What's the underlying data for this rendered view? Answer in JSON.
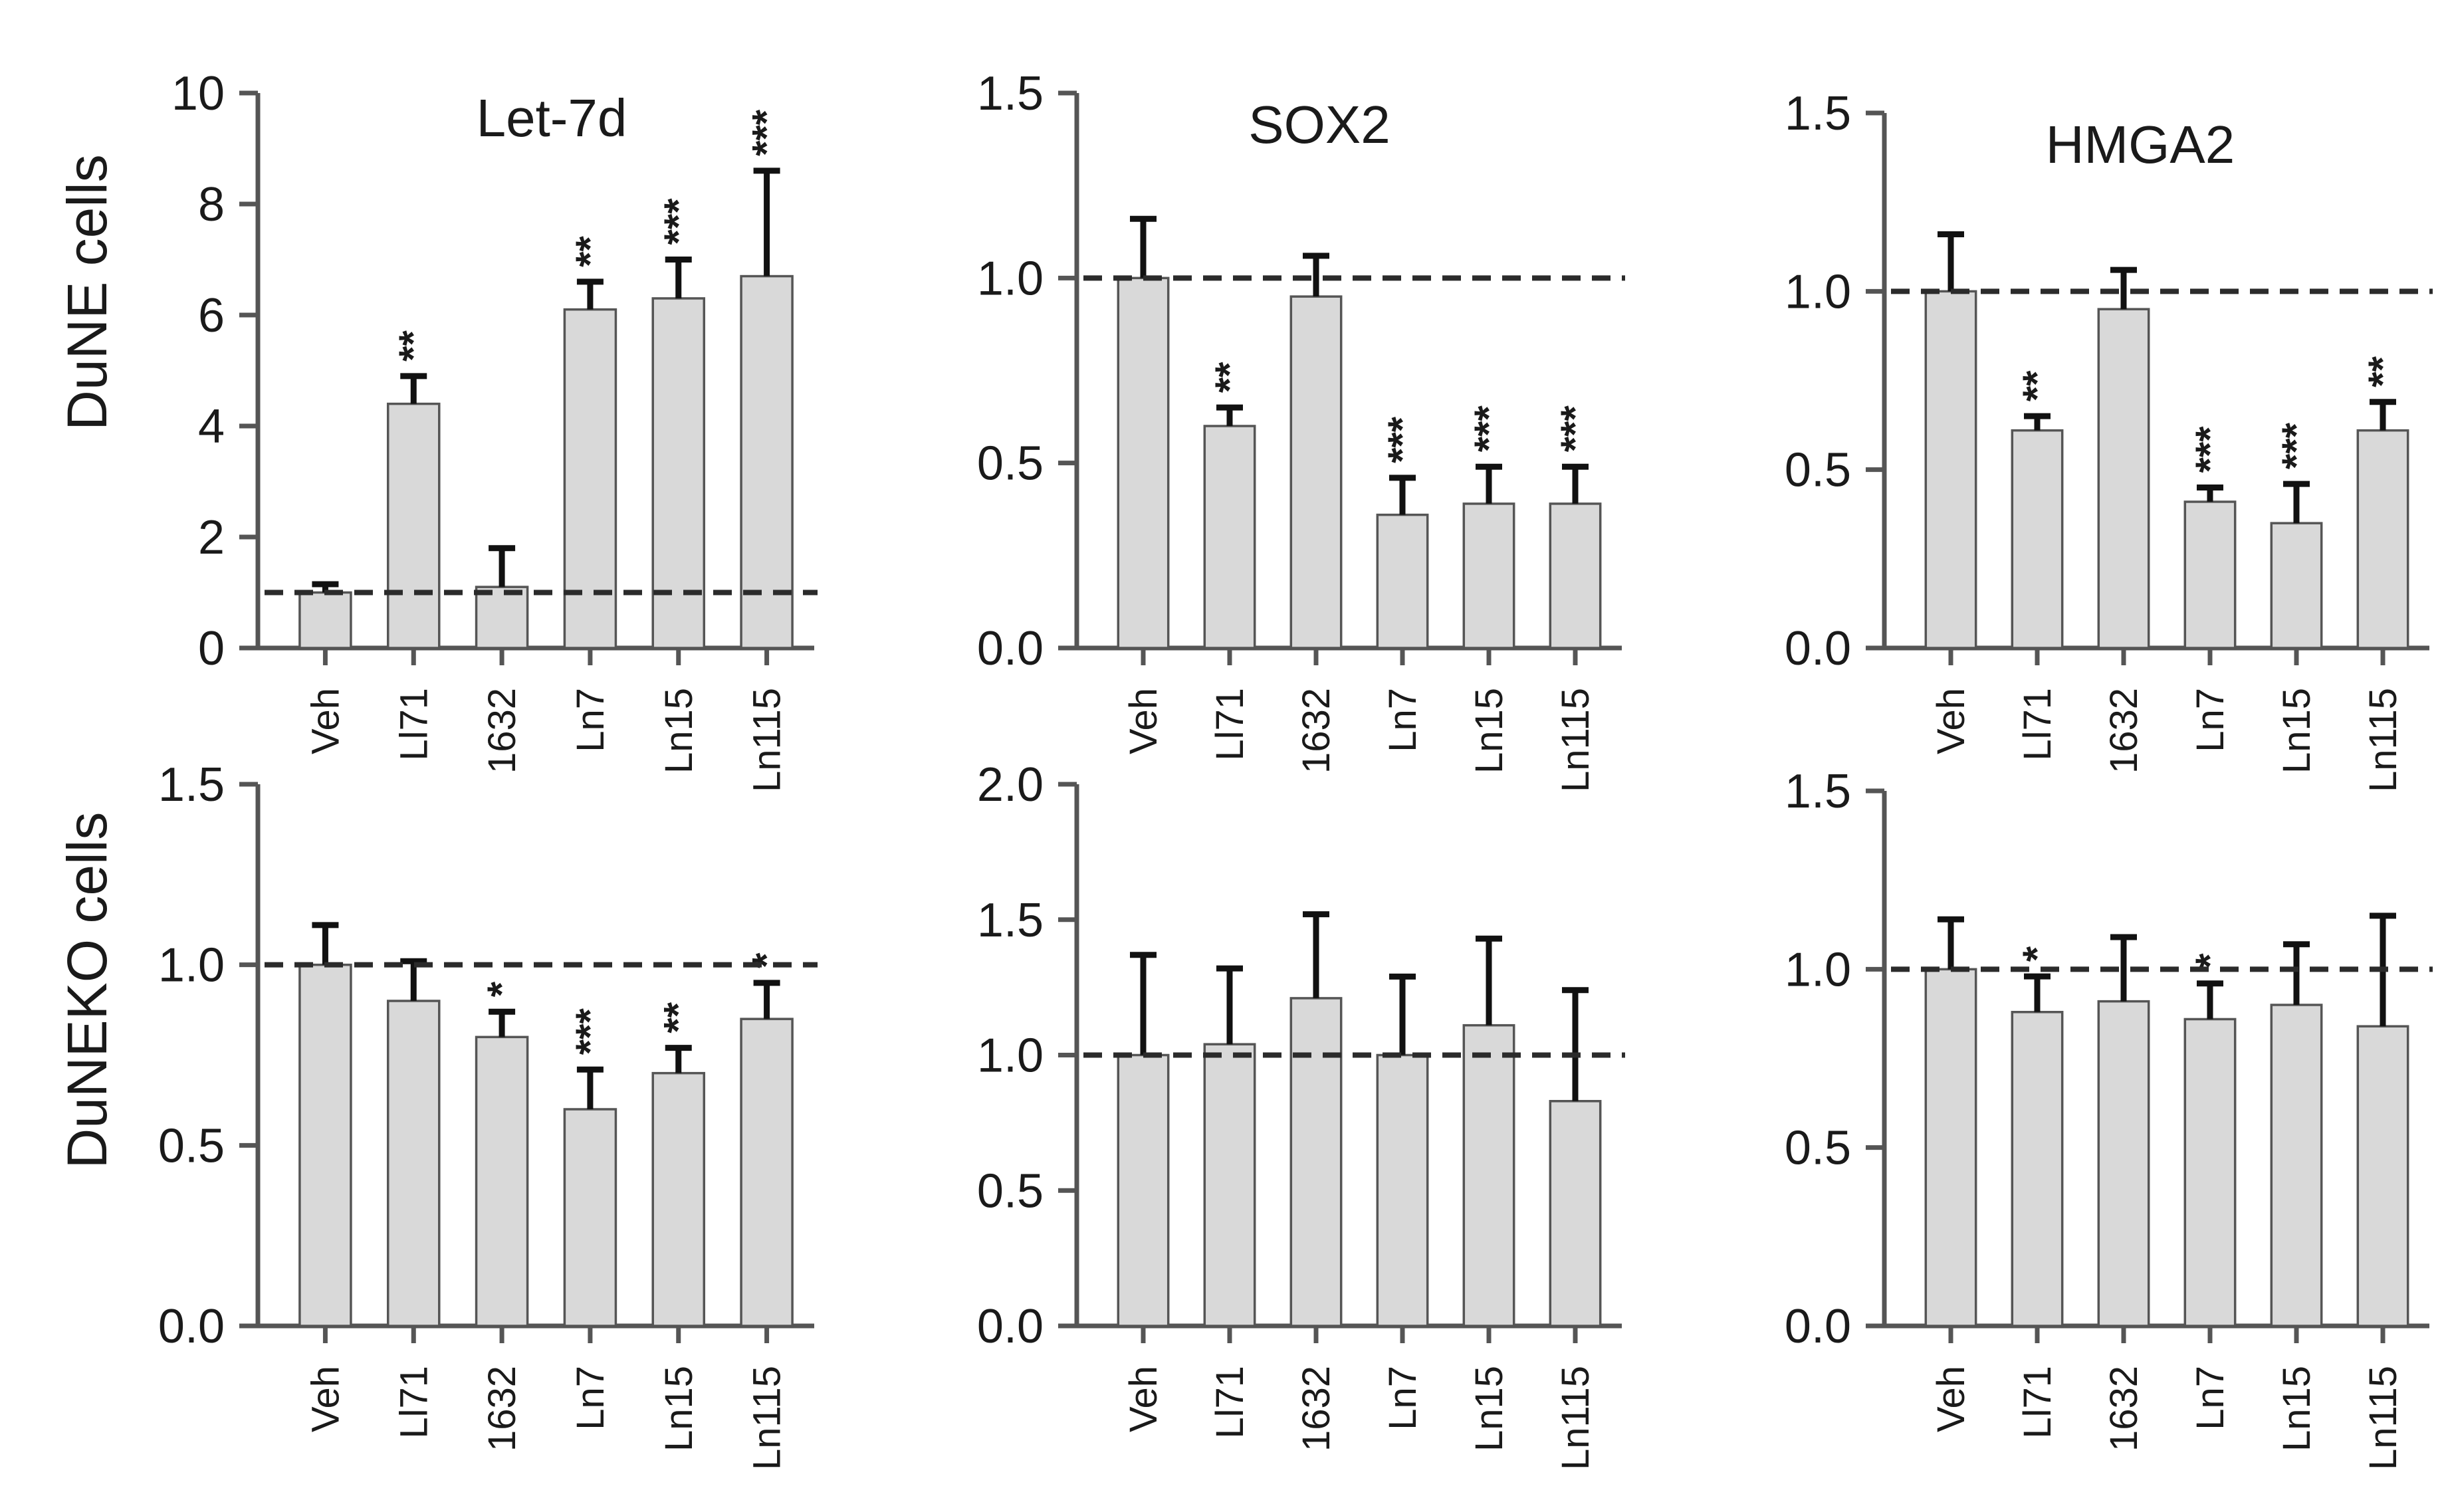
{
  "figure": {
    "row_labels": [
      "DuNE cells",
      "DuNEKO cells"
    ]
  },
  "chart_data": [
    {
      "type": "bar",
      "row": 0,
      "col": 0,
      "title": "Let-7d",
      "ylabel": "DuNE cells",
      "xlabel": "",
      "categories": [
        "Veh",
        "Ll71",
        "1632",
        "Ln7",
        "Ln15",
        "Ln115"
      ],
      "values": [
        1.0,
        4.4,
        1.1,
        6.1,
        6.3,
        6.7
      ],
      "errors": [
        0.15,
        0.5,
        0.7,
        0.5,
        0.7,
        1.9
      ],
      "significance": [
        "",
        "**",
        "",
        "**",
        "***",
        "***"
      ],
      "reference_line": 1.0,
      "ylim": [
        0,
        10
      ],
      "yticks": [
        0,
        2,
        4,
        6,
        8,
        10
      ],
      "ytick_labels": [
        "0",
        "2",
        "4",
        "6",
        "8",
        "10"
      ]
    },
    {
      "type": "bar",
      "row": 0,
      "col": 1,
      "title": "SOX2",
      "ylabel": "DuNE cells",
      "xlabel": "",
      "categories": [
        "Veh",
        "Ll71",
        "1632",
        "Ln7",
        "Ln15",
        "Ln115"
      ],
      "values": [
        1.0,
        0.6,
        0.95,
        0.36,
        0.39,
        0.39
      ],
      "errors": [
        0.16,
        0.05,
        0.11,
        0.1,
        0.1,
        0.1
      ],
      "significance": [
        "",
        "**",
        "",
        "***",
        "***",
        "***"
      ],
      "reference_line": 1.0,
      "ylim": [
        0,
        1.5
      ],
      "yticks": [
        0,
        0.5,
        1.0,
        1.5
      ],
      "ytick_labels": [
        "0.0",
        "0.5",
        "1.0",
        "1.5"
      ]
    },
    {
      "type": "bar",
      "row": 0,
      "col": 2,
      "title": "HMGA2",
      "ylabel": "DuNE cells",
      "xlabel": "",
      "categories": [
        "Veh",
        "Ll71",
        "1632",
        "Ln7",
        "Ln15",
        "Ln115"
      ],
      "values": [
        1.0,
        0.61,
        0.95,
        0.41,
        0.35,
        0.61
      ],
      "errors": [
        0.16,
        0.04,
        0.11,
        0.04,
        0.11,
        0.08
      ],
      "significance": [
        "",
        "**",
        "",
        "***",
        "***",
        "**"
      ],
      "reference_line": 1.0,
      "ylim": [
        0,
        1.5
      ],
      "yticks": [
        0,
        0.5,
        1.0,
        1.5
      ],
      "ytick_labels": [
        "0.0",
        "0.5",
        "1.0",
        "1.5"
      ]
    },
    {
      "type": "bar",
      "row": 1,
      "col": 0,
      "title": "",
      "ylabel": "DuNEKO cells",
      "xlabel": "",
      "categories": [
        "Veh",
        "Ll71",
        "1632",
        "Ln7",
        "Ln15",
        "Ln115"
      ],
      "values": [
        1.0,
        0.9,
        0.8,
        0.6,
        0.7,
        0.85
      ],
      "errors": [
        0.11,
        0.11,
        0.07,
        0.11,
        0.07,
        0.1
      ],
      "significance": [
        "",
        "",
        "*",
        "***",
        "**",
        "*"
      ],
      "reference_line": 1.0,
      "ylim": [
        0,
        1.5
      ],
      "yticks": [
        0,
        0.5,
        1.0,
        1.5
      ],
      "ytick_labels": [
        "0.0",
        "0.5",
        "1.0",
        "1.5"
      ]
    },
    {
      "type": "bar",
      "row": 1,
      "col": 1,
      "title": "",
      "ylabel": "DuNEKO cells",
      "xlabel": "",
      "categories": [
        "Veh",
        "Ll71",
        "1632",
        "Ln7",
        "Ln15",
        "Ln115"
      ],
      "values": [
        1.0,
        1.04,
        1.21,
        1.0,
        1.11,
        0.83
      ],
      "errors": [
        0.37,
        0.28,
        0.31,
        0.29,
        0.32,
        0.41
      ],
      "significance": [
        "",
        "",
        "",
        "",
        "",
        ""
      ],
      "reference_line": 1.0,
      "ylim": [
        0,
        2.0
      ],
      "yticks": [
        0,
        0.5,
        1.0,
        1.5,
        2.0
      ],
      "ytick_labels": [
        "0.0",
        "0.5",
        "1.0",
        "1.5",
        "2.0"
      ]
    },
    {
      "type": "bar",
      "row": 1,
      "col": 2,
      "title": "",
      "ylabel": "DuNEKO cells",
      "xlabel": "",
      "categories": [
        "Veh",
        "Ll71",
        "1632",
        "Ln7",
        "Ln15",
        "Ln115"
      ],
      "values": [
        1.0,
        0.88,
        0.91,
        0.86,
        0.9,
        0.84
      ],
      "errors": [
        0.14,
        0.1,
        0.18,
        0.1,
        0.17,
        0.31
      ],
      "significance": [
        "",
        "*",
        "",
        "*",
        "",
        ""
      ],
      "reference_line": 1.0,
      "ylim": [
        0,
        1.5
      ],
      "yticks": [
        0,
        0.5,
        1.0,
        1.5
      ],
      "ytick_labels": [
        "0.0",
        "0.5",
        "1.0",
        "1.5"
      ]
    }
  ]
}
